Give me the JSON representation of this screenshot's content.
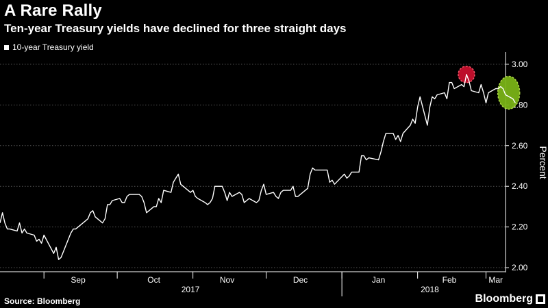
{
  "header": {
    "title": "A Rare Rally",
    "subtitle": "Ten-year Treasury yields have declined for three straight days"
  },
  "footer": {
    "source": "Source: Bloomberg",
    "brand": "Bloomberg"
  },
  "colors": {
    "background": "#000000",
    "line": "#ffffff",
    "grid": "#555555",
    "peak_highlight": "#c8102e",
    "decline_highlight": "#7ab317"
  },
  "chart_data": {
    "type": "line",
    "title": "A Rare Rally",
    "ylabel": "Percent",
    "ylim": [
      1.98,
      3.04
    ],
    "yticks": [
      2.0,
      2.2,
      2.4,
      2.6,
      2.8,
      3.0
    ],
    "ytick_labels": [
      "2.00",
      "2.20",
      "2.40",
      "2.60",
      "2.80",
      "3.00"
    ],
    "grid": true,
    "legend_position": "top-left",
    "x_start": "2017-08-14",
    "x_end": "2018-03-09",
    "month_labels": [
      {
        "label": "Sep",
        "date": "2017-09-15"
      },
      {
        "label": "Oct",
        "date": "2017-10-16"
      },
      {
        "label": "Nov",
        "date": "2017-11-15"
      },
      {
        "label": "Dec",
        "date": "2017-12-15"
      },
      {
        "label": "Jan",
        "date": "2018-01-16"
      },
      {
        "label": "Feb",
        "date": "2018-02-14"
      },
      {
        "label": "Mar",
        "date": "2018-03-05"
      }
    ],
    "month_boundaries": [
      "2017-09-01",
      "2017-10-01",
      "2017-11-01",
      "2017-12-01",
      "2018-01-01",
      "2018-02-01",
      "2018-03-01"
    ],
    "year_labels": [
      {
        "label": "2017",
        "date": "2017-10-31"
      },
      {
        "label": "2018",
        "date": "2018-02-06"
      }
    ],
    "year_boundary": "2018-01-01",
    "series": [
      {
        "name": "10-year Treasury yield",
        "points": [
          [
            "2017-08-14",
            2.22
          ],
          [
            "2017-08-15",
            2.27
          ],
          [
            "2017-08-16",
            2.22
          ],
          [
            "2017-08-17",
            2.19
          ],
          [
            "2017-08-18",
            2.19
          ],
          [
            "2017-08-21",
            2.18
          ],
          [
            "2017-08-22",
            2.22
          ],
          [
            "2017-08-23",
            2.17
          ],
          [
            "2017-08-24",
            2.19
          ],
          [
            "2017-08-25",
            2.17
          ],
          [
            "2017-08-28",
            2.16
          ],
          [
            "2017-08-29",
            2.13
          ],
          [
            "2017-08-30",
            2.14
          ],
          [
            "2017-08-31",
            2.12
          ],
          [
            "2017-09-01",
            2.16
          ],
          [
            "2017-09-05",
            2.07
          ],
          [
            "2017-09-06",
            2.1
          ],
          [
            "2017-09-07",
            2.04
          ],
          [
            "2017-09-08",
            2.05
          ],
          [
            "2017-09-11",
            2.14
          ],
          [
            "2017-09-12",
            2.17
          ],
          [
            "2017-09-13",
            2.19
          ],
          [
            "2017-09-14",
            2.19
          ],
          [
            "2017-09-15",
            2.2
          ],
          [
            "2017-09-18",
            2.23
          ],
          [
            "2017-09-19",
            2.24
          ],
          [
            "2017-09-20",
            2.27
          ],
          [
            "2017-09-21",
            2.28
          ],
          [
            "2017-09-22",
            2.25
          ],
          [
            "2017-09-25",
            2.22
          ],
          [
            "2017-09-26",
            2.24
          ],
          [
            "2017-09-27",
            2.31
          ],
          [
            "2017-09-28",
            2.31
          ],
          [
            "2017-09-29",
            2.33
          ],
          [
            "2017-10-02",
            2.34
          ],
          [
            "2017-10-03",
            2.32
          ],
          [
            "2017-10-04",
            2.32
          ],
          [
            "2017-10-05",
            2.35
          ],
          [
            "2017-10-06",
            2.36
          ],
          [
            "2017-10-10",
            2.36
          ],
          [
            "2017-10-11",
            2.35
          ],
          [
            "2017-10-12",
            2.32
          ],
          [
            "2017-10-13",
            2.27
          ],
          [
            "2017-10-16",
            2.3
          ],
          [
            "2017-10-17",
            2.3
          ],
          [
            "2017-10-18",
            2.34
          ],
          [
            "2017-10-19",
            2.32
          ],
          [
            "2017-10-20",
            2.38
          ],
          [
            "2017-10-23",
            2.37
          ],
          [
            "2017-10-24",
            2.42
          ],
          [
            "2017-10-25",
            2.44
          ],
          [
            "2017-10-26",
            2.46
          ],
          [
            "2017-10-27",
            2.41
          ],
          [
            "2017-10-30",
            2.38
          ],
          [
            "2017-10-31",
            2.37
          ],
          [
            "2017-11-01",
            2.38
          ],
          [
            "2017-11-02",
            2.35
          ],
          [
            "2017-11-03",
            2.34
          ],
          [
            "2017-11-06",
            2.32
          ],
          [
            "2017-11-07",
            2.31
          ],
          [
            "2017-11-08",
            2.32
          ],
          [
            "2017-11-09",
            2.34
          ],
          [
            "2017-11-10",
            2.4
          ],
          [
            "2017-11-13",
            2.4
          ],
          [
            "2017-11-14",
            2.37
          ],
          [
            "2017-11-15",
            2.33
          ],
          [
            "2017-11-16",
            2.37
          ],
          [
            "2017-11-17",
            2.35
          ],
          [
            "2017-11-20",
            2.37
          ],
          [
            "2017-11-21",
            2.36
          ],
          [
            "2017-11-22",
            2.32
          ],
          [
            "2017-11-24",
            2.34
          ],
          [
            "2017-11-27",
            2.32
          ],
          [
            "2017-11-28",
            2.33
          ],
          [
            "2017-11-29",
            2.38
          ],
          [
            "2017-11-30",
            2.41
          ],
          [
            "2017-12-01",
            2.36
          ],
          [
            "2017-12-04",
            2.37
          ],
          [
            "2017-12-05",
            2.35
          ],
          [
            "2017-12-06",
            2.34
          ],
          [
            "2017-12-07",
            2.37
          ],
          [
            "2017-12-08",
            2.38
          ],
          [
            "2017-12-11",
            2.38
          ],
          [
            "2017-12-12",
            2.4
          ],
          [
            "2017-12-13",
            2.35
          ],
          [
            "2017-12-14",
            2.35
          ],
          [
            "2017-12-15",
            2.36
          ],
          [
            "2017-12-18",
            2.39
          ],
          [
            "2017-12-19",
            2.46
          ],
          [
            "2017-12-20",
            2.49
          ],
          [
            "2017-12-21",
            2.48
          ],
          [
            "2017-12-22",
            2.48
          ],
          [
            "2017-12-26",
            2.48
          ],
          [
            "2017-12-27",
            2.42
          ],
          [
            "2017-12-28",
            2.43
          ],
          [
            "2017-12-29",
            2.41
          ],
          [
            "2018-01-02",
            2.46
          ],
          [
            "2018-01-03",
            2.44
          ],
          [
            "2018-01-04",
            2.45
          ],
          [
            "2018-01-05",
            2.47
          ],
          [
            "2018-01-08",
            2.47
          ],
          [
            "2018-01-09",
            2.55
          ],
          [
            "2018-01-10",
            2.55
          ],
          [
            "2018-01-11",
            2.53
          ],
          [
            "2018-01-12",
            2.54
          ],
          [
            "2018-01-16",
            2.53
          ],
          [
            "2018-01-17",
            2.57
          ],
          [
            "2018-01-18",
            2.62
          ],
          [
            "2018-01-19",
            2.66
          ],
          [
            "2018-01-22",
            2.66
          ],
          [
            "2018-01-23",
            2.63
          ],
          [
            "2018-01-24",
            2.65
          ],
          [
            "2018-01-25",
            2.62
          ],
          [
            "2018-01-26",
            2.66
          ],
          [
            "2018-01-29",
            2.7
          ],
          [
            "2018-01-30",
            2.73
          ],
          [
            "2018-01-31",
            2.71
          ],
          [
            "2018-02-01",
            2.79
          ],
          [
            "2018-02-02",
            2.84
          ],
          [
            "2018-02-05",
            2.7
          ],
          [
            "2018-02-06",
            2.79
          ],
          [
            "2018-02-07",
            2.84
          ],
          [
            "2018-02-08",
            2.83
          ],
          [
            "2018-02-09",
            2.85
          ],
          [
            "2018-02-12",
            2.86
          ],
          [
            "2018-02-13",
            2.83
          ],
          [
            "2018-02-14",
            2.91
          ],
          [
            "2018-02-15",
            2.91
          ],
          [
            "2018-02-16",
            2.88
          ],
          [
            "2018-02-19",
            2.9
          ],
          [
            "2018-02-20",
            2.89
          ],
          [
            "2018-02-21",
            2.95
          ],
          [
            "2018-02-22",
            2.92
          ],
          [
            "2018-02-23",
            2.87
          ],
          [
            "2018-02-26",
            2.86
          ],
          [
            "2018-02-27",
            2.9
          ],
          [
            "2018-02-28",
            2.86
          ],
          [
            "2018-03-01",
            2.81
          ],
          [
            "2018-03-02",
            2.86
          ],
          [
            "2018-03-05",
            2.88
          ],
          [
            "2018-03-06",
            2.88
          ],
          [
            "2018-03-07",
            2.89
          ],
          [
            "2018-03-08",
            2.88
          ],
          [
            "2018-03-09",
            2.85
          ],
          [
            "2018-03-12",
            2.83
          ],
          [
            "2018-03-13",
            2.81
          ]
        ]
      }
    ],
    "annotations": [
      {
        "type": "circle",
        "color": "#c8102e",
        "x": "2018-02-21",
        "y": 2.95
      },
      {
        "type": "ellipse",
        "color": "#7ab317",
        "x": "2018-03-12",
        "y": 2.85
      }
    ]
  }
}
